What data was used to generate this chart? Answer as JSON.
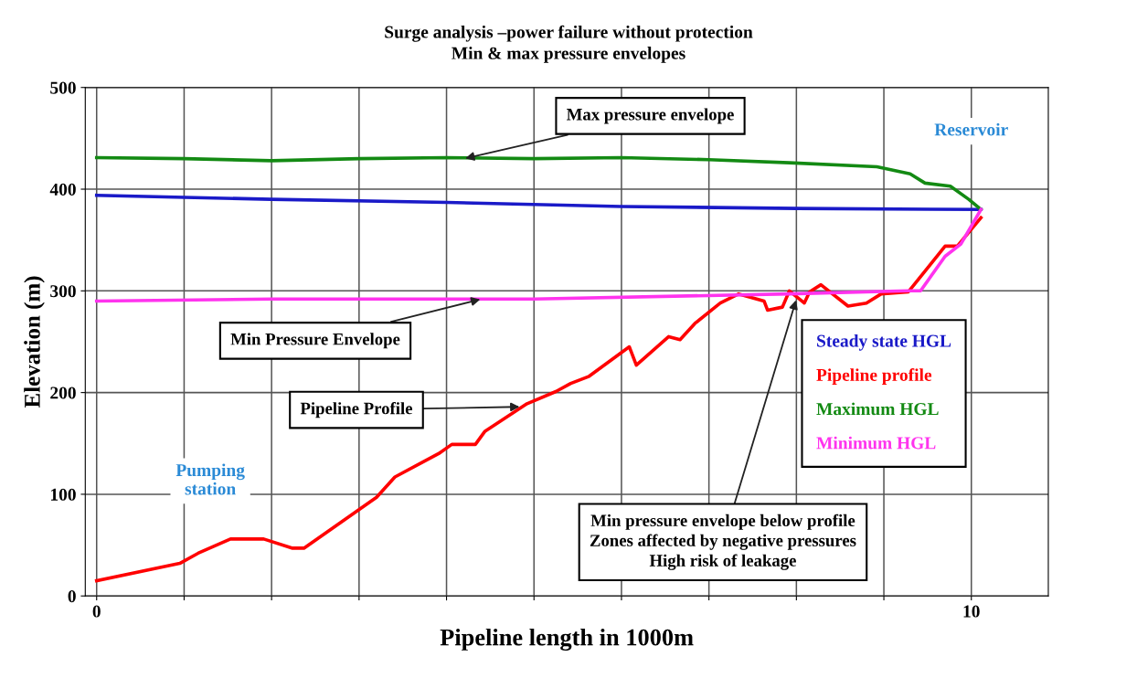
{
  "chart_data": {
    "type": "line",
    "title": "Surge analysis –power failure without protection\nMin & max pressure envelopes",
    "xlabel": "Pipeline length in 1000m",
    "ylabel": "Elevation (m)",
    "xlim": [
      -0.13,
      10.88
    ],
    "ylim": [
      0,
      500
    ],
    "xticks": [
      0,
      {
        "value": 1,
        "label": null
      },
      {
        "value": 2,
        "label": null
      },
      {
        "value": 3,
        "label": null
      },
      {
        "value": 4,
        "label": null
      },
      {
        "value": 5,
        "label": null
      },
      {
        "value": 6,
        "label": null
      },
      {
        "value": 7,
        "label": null
      },
      {
        "value": 8,
        "label": null
      },
      {
        "value": 9,
        "label": null
      },
      10
    ],
    "yticks": [
      0,
      100,
      200,
      300,
      400,
      500
    ],
    "grid": true,
    "legend": "right",
    "marker": "none",
    "line_style": "solid",
    "series": [
      {
        "name": "Steady state HGL",
        "color": "#1a1ac8",
        "x": [
          0,
          2,
          4,
          6,
          8,
          10.11
        ],
        "values": [
          394,
          390,
          387,
          383,
          381,
          380
        ]
      },
      {
        "name": "Pipeline profile",
        "color": "#ff0000",
        "x": [
          0,
          0.95,
          1.16,
          1.53,
          1.91,
          2.24,
          2.37,
          3.2,
          3.41,
          3.91,
          4.06,
          4.33,
          4.44,
          4.92,
          5.25,
          5.42,
          5.63,
          6.09,
          6.17,
          6.54,
          6.67,
          6.84,
          7.13,
          7.34,
          7.63,
          7.67,
          7.84,
          7.92,
          8.09,
          8.15,
          8.28,
          8.59,
          8.8,
          8.97,
          9.28,
          9.7,
          9.84,
          10.11
        ],
        "values": [
          15,
          32,
          42,
          56,
          56,
          47,
          47,
          97,
          117,
          140,
          149,
          149,
          162,
          189,
          201,
          209,
          216,
          245,
          227,
          255,
          252,
          268,
          288,
          297,
          290,
          281,
          284,
          300,
          288,
          299,
          306,
          285,
          288,
          297,
          299,
          344,
          344,
          372
        ]
      },
      {
        "name": "Maximum HGL",
        "color": "#138a13",
        "x": [
          0,
          1,
          2,
          3,
          4,
          5,
          6,
          7,
          7.92,
          8.92,
          9.3,
          9.47,
          9.76,
          9.97,
          10.11
        ],
        "values": [
          431,
          430,
          428,
          430,
          431,
          430,
          431,
          429,
          426,
          422,
          415,
          406,
          403,
          390,
          380
        ]
      },
      {
        "name": "Minimum HGL",
        "color": "#ff33ee",
        "x": [
          0,
          2,
          5,
          7.92,
          9.28,
          9.42,
          9.7,
          9.88,
          10.11
        ],
        "values": [
          290,
          292,
          292,
          297,
          300,
          300,
          334,
          346,
          380
        ]
      }
    ],
    "annotations": [
      {
        "text": "Max pressure envelope",
        "x": 4.2,
        "y": 430
      },
      {
        "text": "Min Pressure Envelope",
        "x": 4.4,
        "y": 292
      },
      {
        "text": "Pipeline Profile",
        "x": 4.85,
        "y": 186
      },
      {
        "text": "Min pressure envelope below profile\nZones affected by negative pressures\nHigh risk of leakage",
        "x": 8.0,
        "y": 292
      },
      "Pumping\nstation",
      "Reservoir"
    ]
  }
}
